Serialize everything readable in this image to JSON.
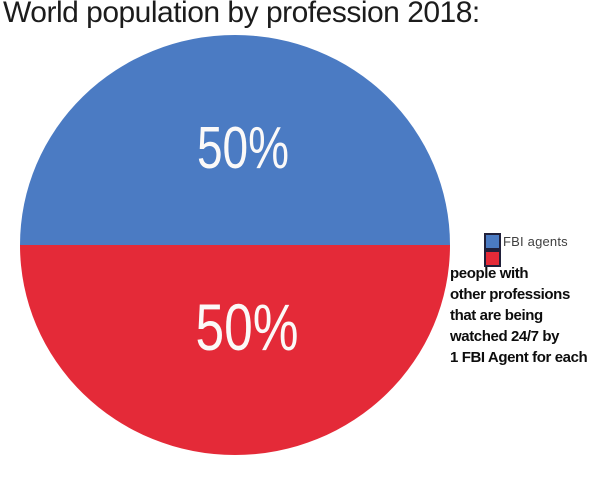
{
  "title": "World population by profession 2018:",
  "colors": {
    "background": "#ffffff",
    "slice_blue": "#4b7bc3",
    "slice_red": "#e42a38",
    "legend_swatch_border": "#20203a",
    "title_text": "#1c1c1c",
    "slice_label_text": "#fbf9f8",
    "legend_fbi_text": "#3f3f3f",
    "legend_other_text": "#0d0d0d"
  },
  "chart_data": {
    "type": "pie",
    "title": "World population by profession 2018:",
    "legend_position": "right",
    "slices": [
      {
        "label": "FBI agents",
        "value": 50,
        "display": "50%",
        "color": "#4b7bc3",
        "position": "top half"
      },
      {
        "label": "people with other professions that are being watched 24/7 by 1 FBI Agent for each",
        "value": 50,
        "display": "50%",
        "color": "#e42a38",
        "position": "bottom half"
      }
    ]
  },
  "legend": {
    "fbi_label": "FBI agents",
    "other_label": "people with\nother professions\nthat are being\nwatched 24/7 by\n1 FBI Agent for each"
  }
}
